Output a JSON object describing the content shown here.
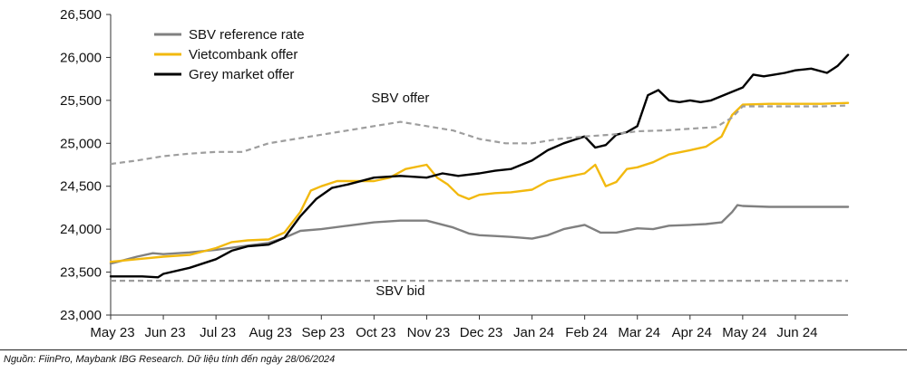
{
  "chart_data": {
    "type": "line",
    "title": "",
    "xlabel": "",
    "ylabel": "",
    "ylim": [
      23000,
      26500
    ],
    "yticks": [
      23000,
      23500,
      24000,
      24500,
      25000,
      25500,
      26000,
      26500
    ],
    "ytick_labels": [
      "23,000",
      "23,500",
      "24,000",
      "24,500",
      "25,000",
      "25,500",
      "26,000",
      "26,500"
    ],
    "x_range": [
      0,
      14.0
    ],
    "x_ticks": [
      0,
      1,
      2,
      3,
      4,
      5,
      6,
      7,
      8,
      9,
      10,
      11,
      12,
      13
    ],
    "x_tick_labels": [
      "May 23",
      "Jun 23",
      "Jul 23",
      "Aug 23",
      "Sep 23",
      "Oct 23",
      "Nov 23",
      "Dec 23",
      "Jan 24",
      "Feb 24",
      "Mar 24",
      "Apr 24",
      "May 24",
      "Jun 24"
    ],
    "legend": [
      "SBV reference rate",
      "Vietcombank offer",
      "Grey market offer"
    ],
    "series": [
      {
        "name": "SBV reference rate",
        "key": "ref",
        "color": "#808080",
        "style": "solid",
        "x": [
          0,
          0.2,
          0.5,
          0.8,
          1.0,
          1.5,
          2.0,
          2.5,
          3.0,
          3.3,
          3.6,
          4.0,
          4.5,
          5.0,
          5.5,
          6.0,
          6.5,
          6.8,
          7.0,
          7.3,
          7.6,
          8.0,
          8.3,
          8.6,
          9.0,
          9.3,
          9.6,
          10.0,
          10.3,
          10.6,
          11.0,
          11.3,
          11.6,
          11.8,
          11.9,
          12.0,
          12.5,
          13.0,
          13.5,
          14.0
        ],
        "values": [
          23600,
          23630,
          23680,
          23720,
          23710,
          23730,
          23760,
          23800,
          23840,
          23900,
          23980,
          24000,
          24040,
          24080,
          24100,
          24100,
          24020,
          23950,
          23930,
          23920,
          23910,
          23890,
          23930,
          24000,
          24050,
          23960,
          23960,
          24010,
          24000,
          24040,
          24050,
          24060,
          24080,
          24200,
          24280,
          24270,
          24260,
          24260,
          24260,
          24260
        ]
      },
      {
        "name": "Vietcombank offer",
        "key": "vcb",
        "color": "#f2b90f",
        "style": "solid",
        "x": [
          0,
          0.5,
          1.0,
          1.5,
          2.0,
          2.3,
          2.6,
          3.0,
          3.3,
          3.6,
          3.8,
          4.0,
          4.3,
          4.6,
          5.0,
          5.3,
          5.6,
          6.0,
          6.2,
          6.4,
          6.6,
          6.8,
          7.0,
          7.3,
          7.6,
          8.0,
          8.3,
          8.6,
          9.0,
          9.2,
          9.4,
          9.6,
          9.8,
          10.0,
          10.3,
          10.6,
          11.0,
          11.3,
          11.6,
          11.8,
          12.0,
          12.5,
          13.0,
          13.5,
          14.0
        ],
        "values": [
          23620,
          23650,
          23680,
          23700,
          23780,
          23850,
          23870,
          23880,
          23960,
          24200,
          24450,
          24500,
          24560,
          24560,
          24560,
          24600,
          24700,
          24750,
          24600,
          24520,
          24400,
          24350,
          24400,
          24420,
          24430,
          24460,
          24560,
          24600,
          24650,
          24750,
          24500,
          24550,
          24700,
          24720,
          24780,
          24870,
          24920,
          24960,
          25080,
          25330,
          25450,
          25460,
          25460,
          25460,
          25470
        ]
      },
      {
        "name": "Grey market offer",
        "key": "grey",
        "color": "#000000",
        "style": "solid",
        "x": [
          0,
          0.3,
          0.6,
          0.9,
          1.0,
          1.5,
          2.0,
          2.3,
          2.6,
          3.0,
          3.3,
          3.6,
          3.9,
          4.2,
          4.5,
          5.0,
          5.5,
          6.0,
          6.3,
          6.6,
          7.0,
          7.3,
          7.6,
          8.0,
          8.3,
          8.6,
          9.0,
          9.2,
          9.4,
          9.6,
          9.8,
          10.0,
          10.2,
          10.4,
          10.6,
          10.8,
          11.0,
          11.2,
          11.4,
          11.6,
          11.8,
          12.0,
          12.2,
          12.4,
          12.6,
          12.8,
          13.0,
          13.3,
          13.6,
          13.8,
          14.0
        ],
        "values": [
          23450,
          23450,
          23450,
          23440,
          23480,
          23550,
          23650,
          23750,
          23800,
          23820,
          23900,
          24150,
          24350,
          24480,
          24520,
          24600,
          24620,
          24600,
          24650,
          24620,
          24650,
          24680,
          24700,
          24800,
          24920,
          25000,
          25080,
          24950,
          24980,
          25100,
          25130,
          25200,
          25560,
          25620,
          25500,
          25480,
          25500,
          25480,
          25500,
          25550,
          25600,
          25650,
          25800,
          25780,
          25800,
          25820,
          25850,
          25870,
          25820,
          25900,
          26030
        ]
      },
      {
        "name": "SBV offer",
        "key": "sbvoffer",
        "color": "#9e9e9e",
        "style": "dashed",
        "x": [
          0,
          0.5,
          1.0,
          1.5,
          2.0,
          2.5,
          3.0,
          3.5,
          4.0,
          4.5,
          5.0,
          5.5,
          6.0,
          6.5,
          7.0,
          7.5,
          8.0,
          8.5,
          9.0,
          9.5,
          10.0,
          10.5,
          11.0,
          11.5,
          11.8,
          12.0,
          12.5,
          13.0,
          13.5,
          14.0
        ],
        "values": [
          24760,
          24800,
          24850,
          24880,
          24900,
          24900,
          25000,
          25050,
          25100,
          25150,
          25200,
          25250,
          25200,
          25150,
          25050,
          25000,
          25000,
          25050,
          25080,
          25100,
          25140,
          25150,
          25170,
          25190,
          25300,
          25430,
          25430,
          25430,
          25430,
          25440
        ]
      },
      {
        "name": "SBV bid",
        "key": "sbvbid",
        "color": "#9e9e9e",
        "style": "dashed",
        "x": [
          0,
          14.0
        ],
        "values": [
          23400,
          23400
        ]
      }
    ],
    "annotations": [
      {
        "text": "SBV offer",
        "x": 5.5,
        "y": 25480
      },
      {
        "text": "SBV bid",
        "x": 5.5,
        "y": 23230
      }
    ]
  },
  "source_note": "Nguồn: FiinPro, Maybank IBG Research. Dữ liệu tính đến ngày 28/06/2024"
}
